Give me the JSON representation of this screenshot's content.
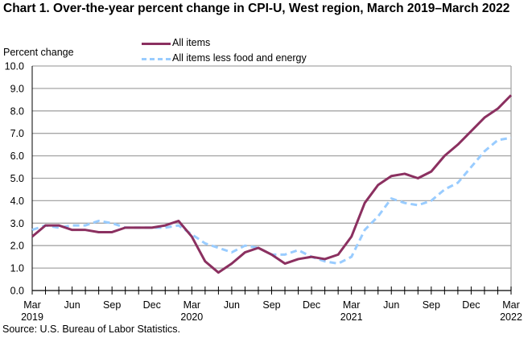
{
  "chart_data": {
    "type": "line",
    "title": "Chart 1. Over-the-year percent change in CPI-U, West region, March 2019–March 2022",
    "ylabel": "Percent change",
    "xlabel": "",
    "ylim": [
      0,
      10
    ],
    "yticks": [
      "0.0",
      "1.0",
      "2.0",
      "3.0",
      "4.0",
      "5.0",
      "6.0",
      "7.0",
      "8.0",
      "9.0",
      "10.0"
    ],
    "xtick_labels": [
      {
        "month": "Mar",
        "year": "2019",
        "index": 0
      },
      {
        "month": "Jun",
        "year": "",
        "index": 3
      },
      {
        "month": "Sep",
        "year": "",
        "index": 6
      },
      {
        "month": "Dec",
        "year": "",
        "index": 9
      },
      {
        "month": "Mar",
        "year": "2020",
        "index": 12
      },
      {
        "month": "Jun",
        "year": "",
        "index": 15
      },
      {
        "month": "Sep",
        "year": "",
        "index": 18
      },
      {
        "month": "Dec",
        "year": "",
        "index": 21
      },
      {
        "month": "Mar",
        "year": "2021",
        "index": 24
      },
      {
        "month": "Jun",
        "year": "",
        "index": 27
      },
      {
        "month": "Sep",
        "year": "",
        "index": 30
      },
      {
        "month": "Dec",
        "year": "",
        "index": 33
      },
      {
        "month": "Mar",
        "year": "2022",
        "index": 36
      }
    ],
    "grid": true,
    "legend_position": "top-center",
    "series": [
      {
        "name": "All items",
        "color": "#8B3060",
        "style": "solid",
        "values": [
          2.4,
          2.9,
          2.9,
          2.7,
          2.7,
          2.6,
          2.6,
          2.8,
          2.8,
          2.8,
          2.9,
          3.1,
          2.4,
          1.3,
          0.8,
          1.2,
          1.7,
          1.9,
          1.6,
          1.2,
          1.4,
          1.5,
          1.4,
          1.6,
          2.4,
          3.9,
          4.7,
          5.1,
          5.2,
          5.0,
          5.3,
          6.0,
          6.5,
          7.1,
          7.7,
          8.1,
          8.7
        ]
      },
      {
        "name": "All items less food and energy",
        "color": "#99CCFF",
        "style": "dashed",
        "values": [
          2.7,
          2.9,
          2.8,
          2.9,
          2.9,
          3.1,
          3.0,
          2.8,
          2.8,
          2.8,
          2.8,
          2.9,
          2.5,
          2.1,
          1.9,
          1.7,
          2.0,
          1.9,
          1.6,
          1.6,
          1.8,
          1.5,
          1.3,
          1.2,
          1.5,
          2.7,
          3.3,
          4.1,
          3.9,
          3.8,
          4.0,
          4.5,
          4.8,
          5.5,
          6.2,
          6.7,
          6.8
        ]
      }
    ]
  },
  "source": "Source: U.S. Bureau of Labor Statistics."
}
